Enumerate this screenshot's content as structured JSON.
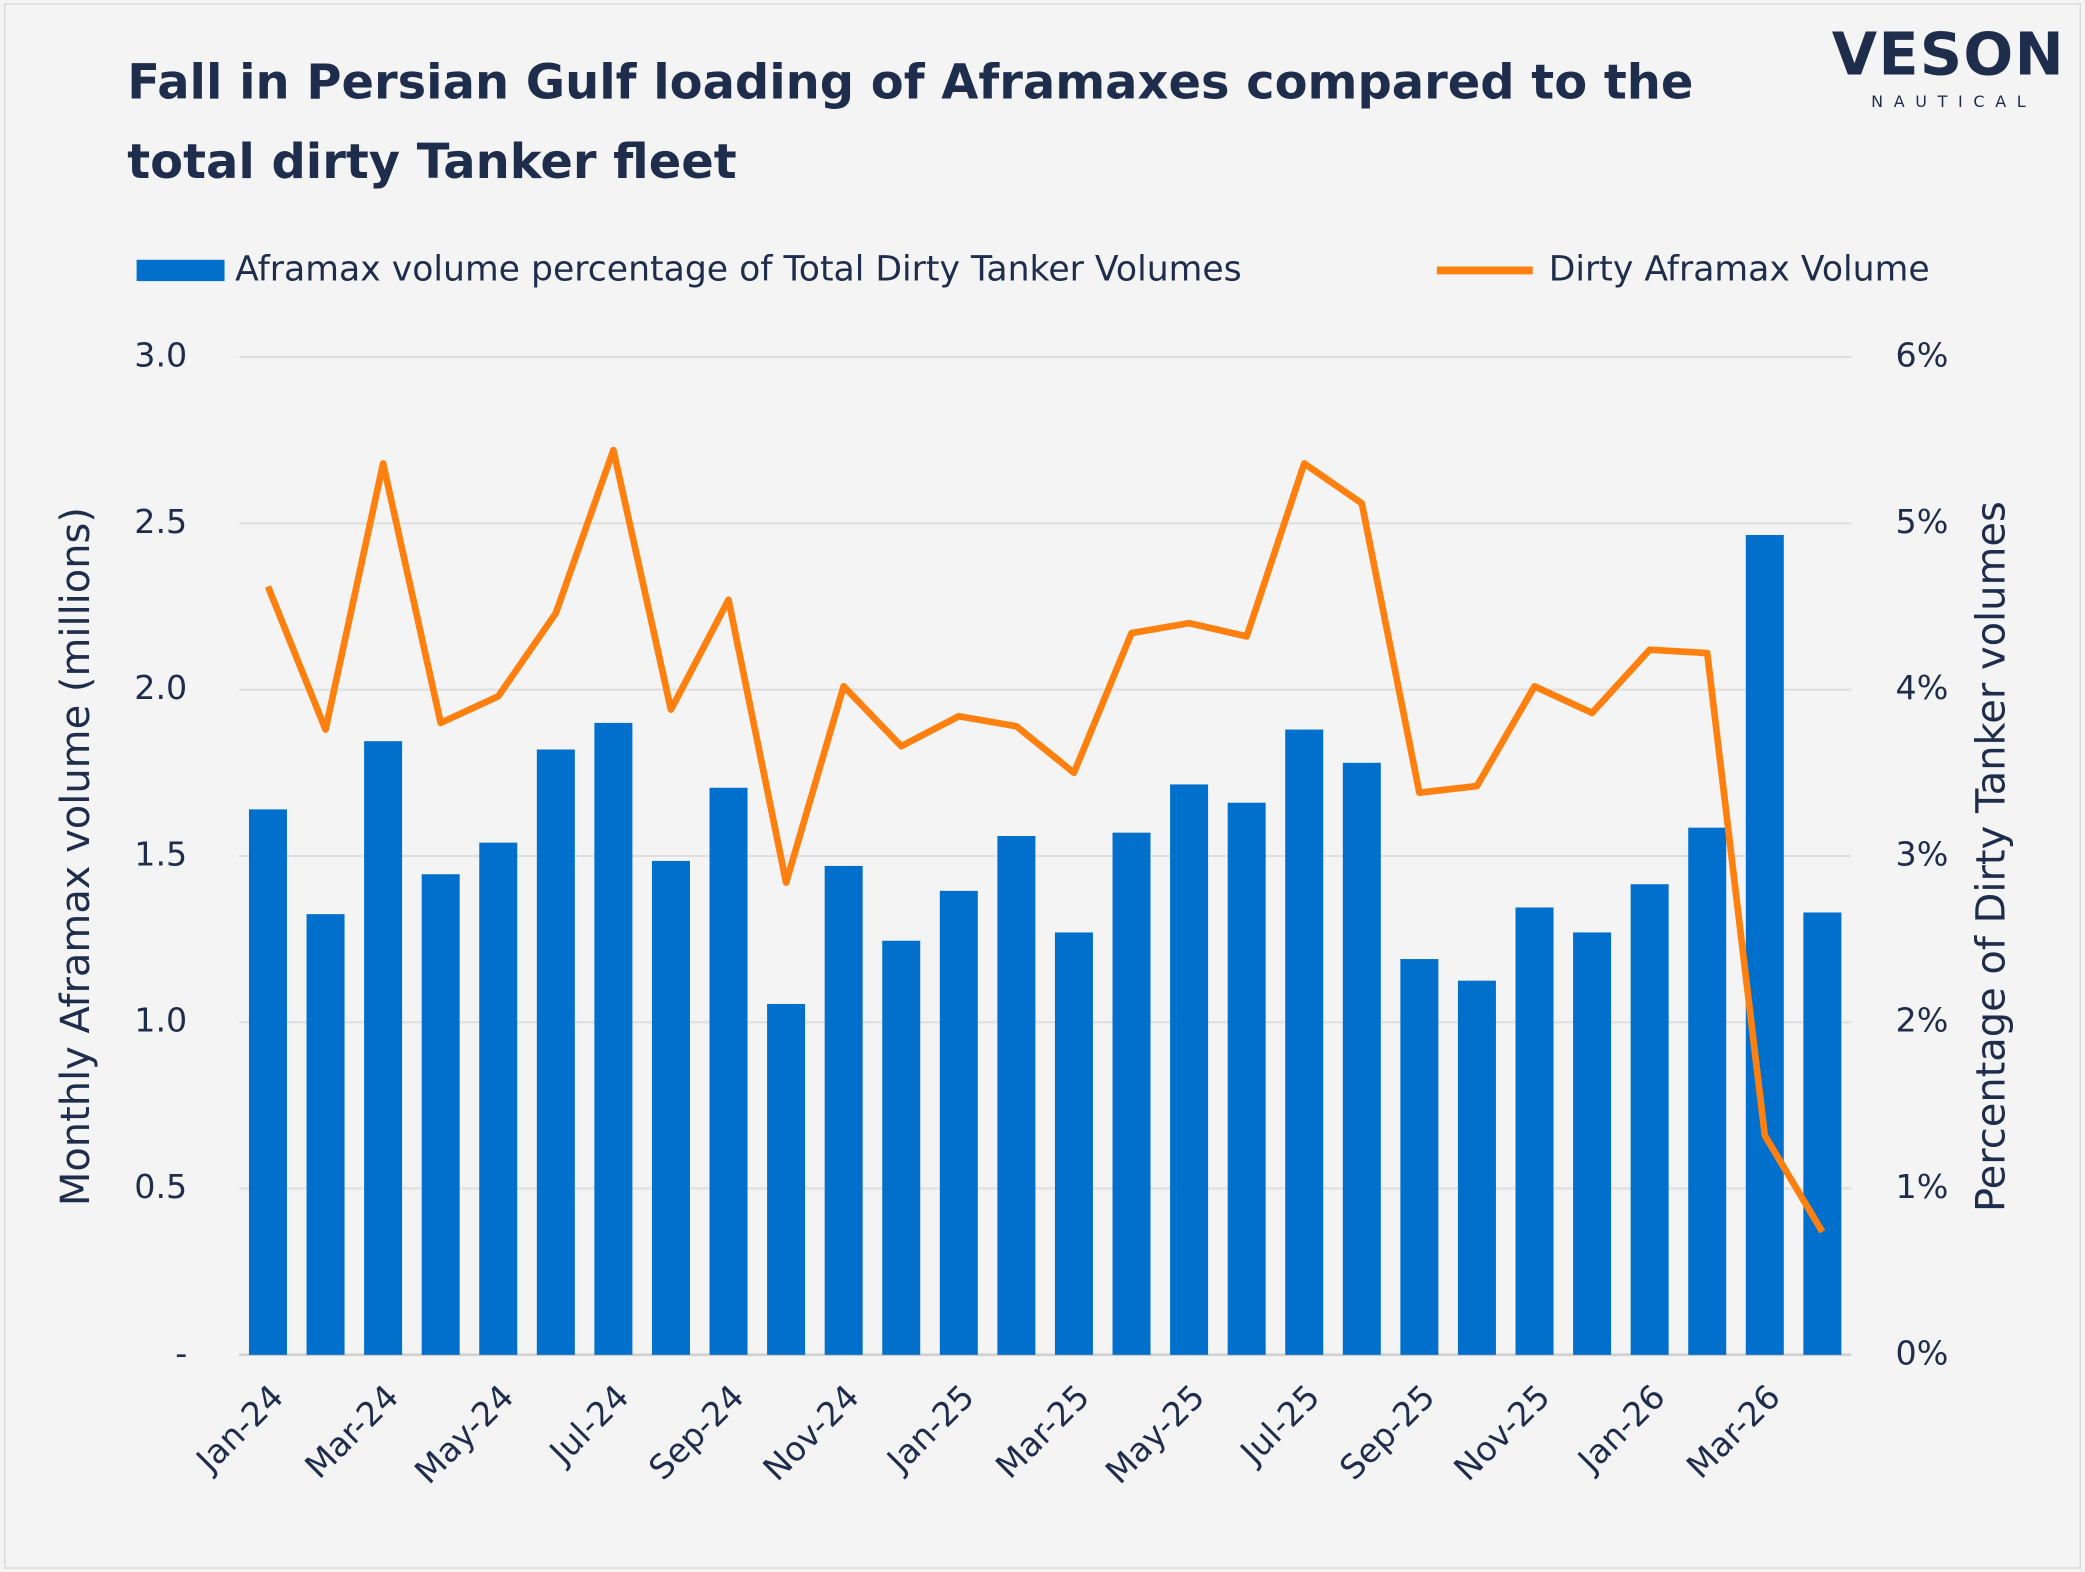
{
  "chart_data": {
    "type": "bar-line",
    "title": "Fall in Persian Gulf loading of Aframaxes compared to the total dirty Tanker fleet",
    "logo": {
      "text": "VESON",
      "subtext": "NAUTICAL"
    },
    "y_label": "Monthly Aframax volume (millions)",
    "y2_label": "Percentage of Dirty Tanker volumes",
    "categories": [
      "Jan-24",
      null,
      "Mar-24",
      null,
      "May-24",
      null,
      "Jul-24",
      null,
      "Sep-24",
      null,
      "Nov-24",
      null,
      "Jan-25",
      null,
      "Mar-25",
      null,
      "May-25",
      null,
      "Jul-25",
      null,
      "Sep-25",
      null,
      "Nov-25",
      null,
      "Jan-26",
      null,
      "Mar-26",
      null
    ],
    "series": [
      {
        "name": "Aframax volume percentage of Total Dirty Tanker Volumes",
        "type": "bar",
        "axis": "y2",
        "color": "#0070cc",
        "values": [
          3.28,
          2.65,
          3.69,
          2.89,
          3.08,
          3.64,
          3.8,
          2.97,
          3.41,
          2.11,
          2.94,
          2.49,
          2.79,
          3.12,
          2.54,
          3.14,
          3.43,
          3.32,
          3.76,
          3.56,
          2.38,
          2.25,
          2.69,
          2.54,
          2.83,
          3.17,
          4.93,
          2.66
        ]
      },
      {
        "name": "Dirty Aframax Volume",
        "type": "line",
        "axis": "y",
        "color": "#ff7f0f",
        "values": [
          2.31,
          1.88,
          2.68,
          1.9,
          1.98,
          2.23,
          2.72,
          1.94,
          2.27,
          1.42,
          2.01,
          1.83,
          1.92,
          1.89,
          1.75,
          2.17,
          2.2,
          2.16,
          2.68,
          2.56,
          1.69,
          1.71,
          2.01,
          1.93,
          2.12,
          2.11,
          0.66,
          0.37
        ]
      }
    ],
    "ylim": [
      0,
      3
    ],
    "yticks": [
      {
        "value": 0,
        "label": "-"
      },
      0.5,
      {
        "value": 1,
        "label": "1.0"
      },
      1.5,
      {
        "value": 2,
        "label": "2.0"
      },
      2.5,
      {
        "value": 3,
        "label": "3.0"
      }
    ],
    "y2lim": [
      0,
      6
    ],
    "y2ticks": [
      {
        "value": 0,
        "label": "0%"
      },
      {
        "value": 1,
        "label": "1%"
      },
      {
        "value": 2,
        "label": "2%"
      },
      {
        "value": 3,
        "label": "3%"
      },
      {
        "value": 4,
        "label": "4%"
      },
      {
        "value": 5,
        "label": "5%"
      },
      {
        "value": 6,
        "label": "6%"
      }
    ],
    "grid": true,
    "legend": "top"
  }
}
